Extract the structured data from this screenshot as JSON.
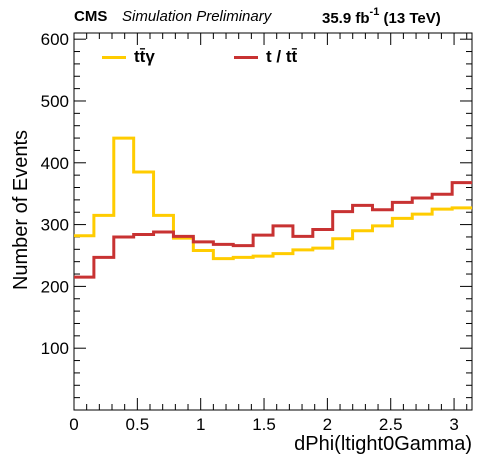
{
  "header": {
    "experiment": "CMS",
    "status": "Simulation Preliminary",
    "lumi_value": "35.9 fb",
    "lumi_exp": "-1",
    "energy": "(13 TeV)"
  },
  "chart_data": {
    "type": "line",
    "style": "step-histogram",
    "xlabel": "dPhi(ltight0Gamma)",
    "ylabel": "Number of Events",
    "xlim": [
      0,
      3.1416
    ],
    "ylim": [
      0,
      610
    ],
    "x_ticks": [
      "0",
      "0.5",
      "1",
      "1.5",
      "2",
      "2.5",
      "3"
    ],
    "y_ticks": [
      "100",
      "200",
      "300",
      "400",
      "500",
      "600"
    ],
    "bin_edges": [
      0,
      0.157,
      0.314,
      0.471,
      0.628,
      0.785,
      0.942,
      1.1,
      1.257,
      1.414,
      1.571,
      1.728,
      1.885,
      2.042,
      2.199,
      2.356,
      2.513,
      2.67,
      2.827,
      2.985,
      3.142
    ],
    "legend_position": "top",
    "series": [
      {
        "name": "tt̄γ",
        "color": "#ffcc00",
        "values": [
          282,
          315,
          440,
          385,
          315,
          278,
          258,
          245,
          247,
          249,
          253,
          259,
          262,
          277,
          290,
          298,
          310,
          317,
          325,
          327
        ]
      },
      {
        "name": "t / tt̄",
        "color": "#c83232",
        "values": [
          215,
          247,
          280,
          284,
          288,
          281,
          272,
          268,
          266,
          283,
          298,
          281,
          292,
          321,
          331,
          324,
          336,
          343,
          349,
          368
        ]
      }
    ]
  }
}
